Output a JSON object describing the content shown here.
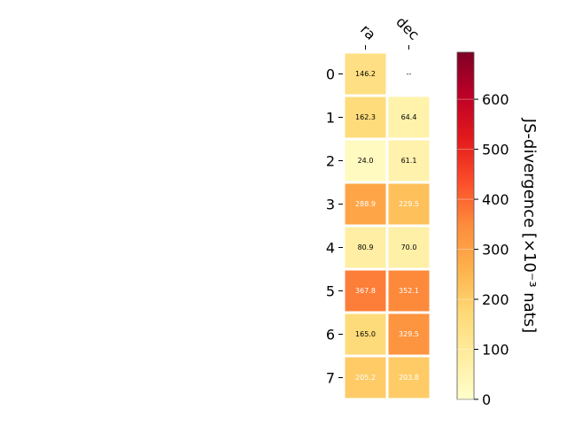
{
  "chart_data": {
    "type": "heatmap",
    "columns": [
      "ra",
      "dec"
    ],
    "rows": [
      "0",
      "1",
      "2",
      "3",
      "4",
      "5",
      "6",
      "7"
    ],
    "values": [
      [
        146.2,
        null
      ],
      [
        162.3,
        64.4
      ],
      [
        24.0,
        61.1
      ],
      [
        288.9,
        229.5
      ],
      [
        80.9,
        70.0
      ],
      [
        367.8,
        352.1
      ],
      [
        165.0,
        329.5
      ],
      [
        205.2,
        203.8
      ]
    ],
    "cell_labels": [
      [
        "146.2",
        "--"
      ],
      [
        "162.3",
        "64.4"
      ],
      [
        "24.0",
        "61.1"
      ],
      [
        "288.9",
        "229.5"
      ],
      [
        "80.9",
        "70.0"
      ],
      [
        "367.8",
        "352.1"
      ],
      [
        "165.0",
        "329.5"
      ],
      [
        "205.2",
        "203.8"
      ]
    ],
    "colorbar": {
      "label": "JS-divergence [×10⁻³ nats]",
      "range": [
        0,
        694
      ],
      "ticks": [
        0,
        100,
        200,
        300,
        400,
        500,
        600
      ],
      "colormap": "YlOrRd"
    }
  }
}
